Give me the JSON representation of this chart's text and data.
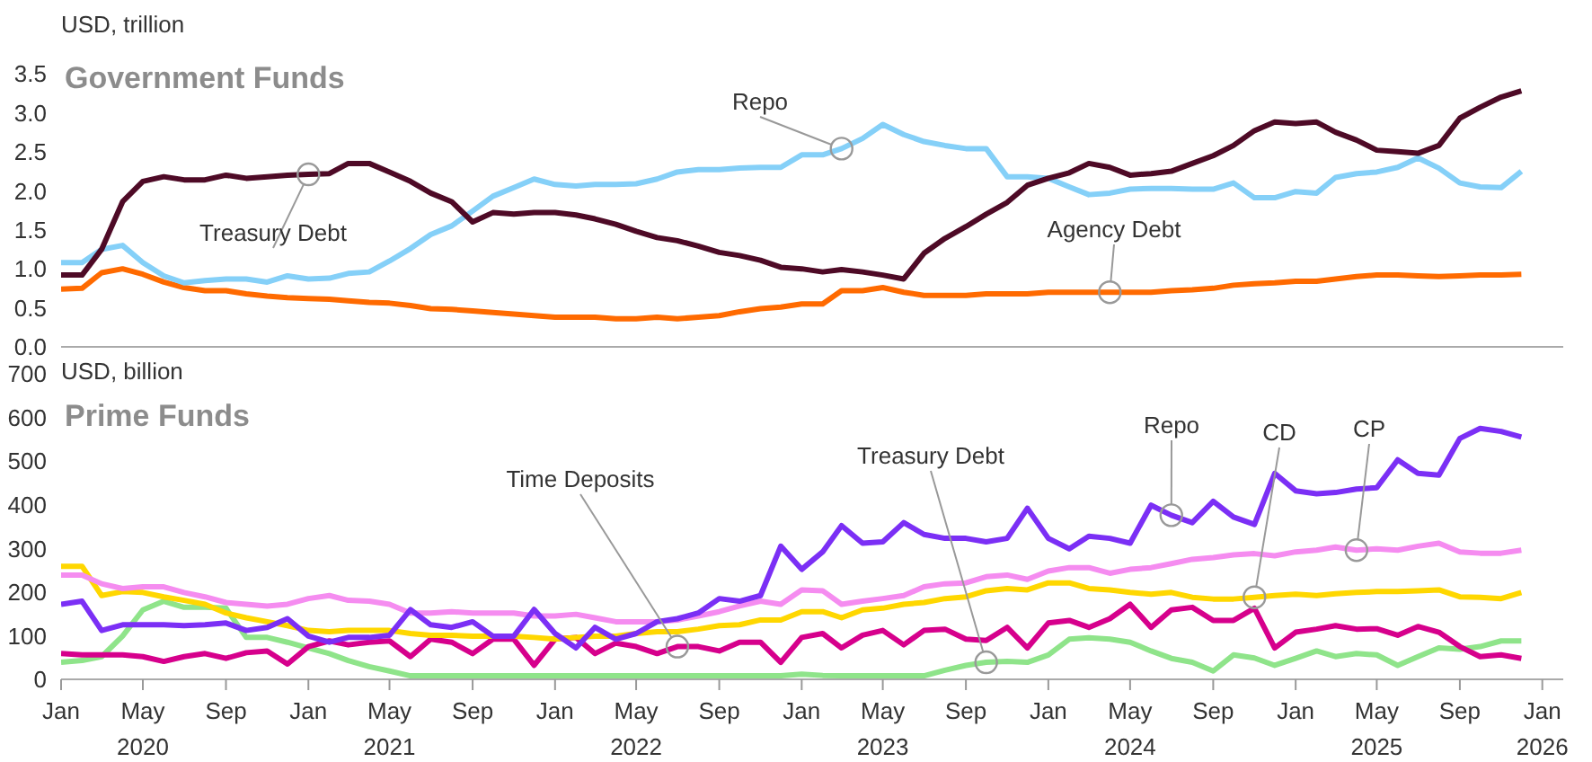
{
  "chart_data": [
    {
      "type": "line",
      "title": "Government Funds",
      "ylabel": "USD, trillion",
      "tick_labels": "y",
      "x": [
        "2020-01",
        "2020-02",
        "2020-03",
        "2020-04",
        "2020-05",
        "2020-06",
        "2020-07",
        "2020-08",
        "2020-09",
        "2020-10",
        "2020-11",
        "2020-12",
        "2021-01",
        "2021-02",
        "2021-03",
        "2021-04",
        "2021-05",
        "2021-06",
        "2021-07",
        "2021-08",
        "2021-09",
        "2021-10",
        "2021-11",
        "2021-12",
        "2022-01",
        "2022-02",
        "2022-03",
        "2022-04",
        "2022-05",
        "2022-06",
        "2022-07",
        "2022-08",
        "2022-09",
        "2022-10",
        "2022-11",
        "2022-12",
        "2023-01",
        "2023-02",
        "2023-03",
        "2023-04",
        "2023-05",
        "2023-06",
        "2023-07",
        "2023-08",
        "2023-09",
        "2023-10",
        "2023-11",
        "2023-12",
        "2024-01",
        "2024-02",
        "2024-03",
        "2024-04",
        "2024-05",
        "2024-06",
        "2024-07",
        "2024-08",
        "2024-09",
        "2024-10",
        "2024-11",
        "2024-12",
        "2025-01",
        "2025-02",
        "2025-03",
        "2025-04",
        "2025-05",
        "2025-06",
        "2025-07",
        "2025-08",
        "2025-09",
        "2025-10",
        "2025-11",
        "2025-12"
      ],
      "xlim": [
        "2020-01",
        "2026-02"
      ],
      "ylim": [
        0,
        3.5
      ],
      "yticks": [
        {
          "value": 0,
          "label": "0.0"
        },
        0.5,
        {
          "value": 1,
          "label": "1.0"
        },
        1.5,
        {
          "value": 2,
          "label": "2.0"
        },
        2.5,
        {
          "value": 3,
          "label": "3.0"
        },
        3.5
      ],
      "series": [
        {
          "name": "Agency Debt",
          "color": "#ff6a00",
          "values": [
            0.74,
            0.75,
            0.95,
            1.0,
            0.93,
            0.83,
            0.76,
            0.72,
            0.72,
            0.68,
            0.65,
            0.63,
            0.62,
            0.61,
            0.59,
            0.57,
            0.56,
            0.53,
            0.49,
            0.48,
            0.46,
            0.44,
            0.42,
            0.4,
            0.38,
            0.38,
            0.38,
            0.36,
            0.36,
            0.38,
            0.36,
            0.38,
            0.4,
            0.45,
            0.49,
            0.51,
            0.55,
            0.55,
            0.72,
            0.72,
            0.76,
            0.7,
            0.66,
            0.66,
            0.66,
            0.68,
            0.68,
            0.68,
            0.7,
            0.7,
            0.7,
            0.7,
            0.7,
            0.7,
            0.72,
            0.73,
            0.75,
            0.79,
            0.81,
            0.82,
            0.84,
            0.84,
            0.87,
            0.9,
            0.92,
            0.92,
            0.91,
            0.9,
            0.91,
            0.92,
            0.92,
            0.93
          ]
        },
        {
          "name": "Repo",
          "color": "#85d0f8",
          "values": [
            1.08,
            1.08,
            1.25,
            1.3,
            1.08,
            0.91,
            0.82,
            0.85,
            0.87,
            0.87,
            0.83,
            0.91,
            0.87,
            0.88,
            0.94,
            0.96,
            1.1,
            1.26,
            1.44,
            1.55,
            1.74,
            1.93,
            2.04,
            2.15,
            2.08,
            2.06,
            2.08,
            2.08,
            2.09,
            2.15,
            2.24,
            2.27,
            2.27,
            2.29,
            2.3,
            2.3,
            2.46,
            2.46,
            2.54,
            2.67,
            2.85,
            2.72,
            2.63,
            2.58,
            2.54,
            2.54,
            2.18,
            2.18,
            2.16,
            2.05,
            1.95,
            1.97,
            2.02,
            2.03,
            2.03,
            2.02,
            2.02,
            2.1,
            1.91,
            1.91,
            1.99,
            1.97,
            2.17,
            2.22,
            2.24,
            2.3,
            2.42,
            2.29,
            2.1,
            2.05,
            2.04,
            2.25
          ]
        },
        {
          "name": "Treasury Debt",
          "color": "#4e0a26",
          "values": [
            0.92,
            0.92,
            1.25,
            1.86,
            2.12,
            2.18,
            2.14,
            2.14,
            2.2,
            2.16,
            2.18,
            2.2,
            2.21,
            2.22,
            2.35,
            2.35,
            2.24,
            2.12,
            1.97,
            1.86,
            1.6,
            1.72,
            1.7,
            1.72,
            1.72,
            1.69,
            1.64,
            1.57,
            1.48,
            1.4,
            1.36,
            1.29,
            1.21,
            1.17,
            1.11,
            1.02,
            1.0,
            0.96,
            0.99,
            0.96,
            0.92,
            0.87,
            1.2,
            1.39,
            1.54,
            1.7,
            1.85,
            2.07,
            2.16,
            2.23,
            2.35,
            2.3,
            2.2,
            2.22,
            2.25,
            2.35,
            2.45,
            2.58,
            2.77,
            2.88,
            2.86,
            2.88,
            2.75,
            2.65,
            2.52,
            2.5,
            2.48,
            2.58,
            2.93,
            3.07,
            3.2,
            3.28
          ]
        }
      ]
    },
    {
      "type": "line",
      "title": "Prime Funds",
      "ylabel": "USD, billion",
      "x": [
        "2020-01",
        "2020-02",
        "2020-03",
        "2020-04",
        "2020-05",
        "2020-06",
        "2020-07",
        "2020-08",
        "2020-09",
        "2020-10",
        "2020-11",
        "2020-12",
        "2021-01",
        "2021-02",
        "2021-03",
        "2021-04",
        "2021-05",
        "2021-06",
        "2021-07",
        "2021-08",
        "2021-09",
        "2021-10",
        "2021-11",
        "2021-12",
        "2022-01",
        "2022-02",
        "2022-03",
        "2022-04",
        "2022-05",
        "2022-06",
        "2022-07",
        "2022-08",
        "2022-09",
        "2022-10",
        "2022-11",
        "2022-12",
        "2023-01",
        "2023-02",
        "2023-03",
        "2023-04",
        "2023-05",
        "2023-06",
        "2023-07",
        "2023-08",
        "2023-09",
        "2023-10",
        "2023-11",
        "2023-12",
        "2024-01",
        "2024-02",
        "2024-03",
        "2024-04",
        "2024-05",
        "2024-06",
        "2024-07",
        "2024-08",
        "2024-09",
        "2024-10",
        "2024-11",
        "2024-12",
        "2025-01",
        "2025-02",
        "2025-03",
        "2025-04",
        "2025-05",
        "2025-06",
        "2025-07",
        "2025-08",
        "2025-09",
        "2025-10",
        "2025-11",
        "2025-12"
      ],
      "xlim": [
        "2020-01",
        "2026-02"
      ],
      "xticks": [
        {
          "value": "2020-01",
          "label": "Jan"
        },
        {
          "value": "2020-05",
          "label": "May\n2020"
        },
        {
          "value": "2020-09",
          "label": "Sep"
        },
        {
          "value": "2021-01",
          "label": "Jan"
        },
        {
          "value": "2021-05",
          "label": "May\n2021"
        },
        {
          "value": "2021-09",
          "label": "Sep"
        },
        {
          "value": "2022-01",
          "label": "Jan"
        },
        {
          "value": "2022-05",
          "label": "May\n2022"
        },
        {
          "value": "2022-09",
          "label": "Sep"
        },
        {
          "value": "2023-01",
          "label": "Jan"
        },
        {
          "value": "2023-05",
          "label": "May\n2023"
        },
        {
          "value": "2023-09",
          "label": "Sep"
        },
        {
          "value": "2024-01",
          "label": "Jan"
        },
        {
          "value": "2024-05",
          "label": "May\n2024"
        },
        {
          "value": "2024-09",
          "label": "Sep"
        },
        {
          "value": "2025-01",
          "label": "Jan"
        },
        {
          "value": "2025-05",
          "label": "May\n2025"
        },
        {
          "value": "2025-09",
          "label": "Sep"
        },
        {
          "value": "2026-01",
          "label": "Jan\n2026"
        }
      ],
      "ylim": [
        0,
        700
      ],
      "yticks": [
        0,
        100,
        200,
        300,
        400,
        500,
        600,
        700
      ],
      "series": [
        {
          "name": "Treasury Debt",
          "color": "#8fe48a",
          "values": [
            39,
            43,
            52,
            99,
            159,
            179,
            165,
            165,
            163,
            96,
            96,
            85,
            72,
            59,
            43,
            29,
            19,
            8,
            8,
            8,
            8,
            8,
            8,
            8,
            8,
            8,
            8,
            8,
            8,
            8,
            8,
            8,
            8,
            8,
            8,
            8,
            12,
            9,
            8,
            8,
            8,
            8,
            8,
            21,
            32,
            39,
            41,
            39,
            56,
            92,
            95,
            92,
            85,
            65,
            48,
            39,
            19,
            56,
            49,
            32,
            48,
            65,
            52,
            59,
            56,
            32,
            52,
            72,
            69,
            75,
            88,
            88
          ]
        },
        {
          "name": "Time Deposits",
          "color": "#d6008c",
          "values": [
            59,
            56,
            56,
            56,
            52,
            41,
            52,
            59,
            48,
            61,
            65,
            35,
            75,
            88,
            79,
            85,
            88,
            52,
            92,
            85,
            59,
            92,
            92,
            32,
            92,
            96,
            59,
            83,
            75,
            59,
            75,
            75,
            65,
            85,
            85,
            39,
            96,
            105,
            72,
            101,
            112,
            79,
            112,
            115,
            92,
            89,
            119,
            72,
            129,
            135,
            119,
            139,
            172,
            119,
            159,
            165,
            135,
            135,
            163,
            72,
            108,
            115,
            123,
            115,
            116,
            101,
            121,
            108,
            75,
            52,
            56,
            48
          ]
        },
        {
          "name": "CD",
          "color": "#ffd700",
          "values": [
            259,
            259,
            192,
            201,
            199,
            189,
            181,
            172,
            152,
            141,
            132,
            123,
            112,
            109,
            112,
            112,
            112,
            105,
            101,
            101,
            99,
            99,
            99,
            96,
            92,
            96,
            99,
            99,
            105,
            109,
            109,
            115,
            123,
            125,
            136,
            136,
            155,
            155,
            141,
            159,
            163,
            172,
            176,
            185,
            189,
            203,
            208,
            205,
            221,
            221,
            208,
            205,
            199,
            195,
            199,
            188,
            184,
            184,
            188,
            192,
            195,
            192,
            196,
            199,
            201,
            201,
            203,
            205,
            189,
            188,
            185,
            199
          ]
        },
        {
          "name": "CP",
          "color": "#f58cf0",
          "values": [
            239,
            239,
            219,
            208,
            212,
            212,
            199,
            189,
            176,
            172,
            168,
            172,
            185,
            192,
            181,
            179,
            172,
            152,
            152,
            155,
            152,
            152,
            152,
            145,
            145,
            149,
            141,
            132,
            132,
            132,
            136,
            145,
            155,
            168,
            179,
            172,
            205,
            203,
            172,
            179,
            185,
            192,
            212,
            219,
            221,
            235,
            239,
            229,
            248,
            256,
            256,
            243,
            252,
            256,
            265,
            275,
            279,
            285,
            288,
            283,
            292,
            296,
            303,
            296,
            299,
            296,
            305,
            312,
            292,
            289,
            289,
            296
          ]
        },
        {
          "name": "Repo",
          "color": "#7b2ff5",
          "values": [
            172,
            179,
            112,
            125,
            125,
            125,
            123,
            125,
            129,
            112,
            119,
            139,
            99,
            85,
            96,
            96,
            101,
            160,
            125,
            119,
            132,
            99,
            99,
            160,
            105,
            72,
            119,
            92,
            105,
            132,
            139,
            152,
            185,
            179,
            192,
            305,
            252,
            292,
            352,
            312,
            315,
            359,
            332,
            323,
            323,
            315,
            323,
            392,
            323,
            299,
            328,
            323,
            312,
            399,
            376,
            359,
            408,
            372,
            355,
            472,
            432,
            425,
            428,
            436,
            439,
            503,
            472,
            468,
            552,
            575,
            568,
            555
          ]
        }
      ]
    }
  ]
}
